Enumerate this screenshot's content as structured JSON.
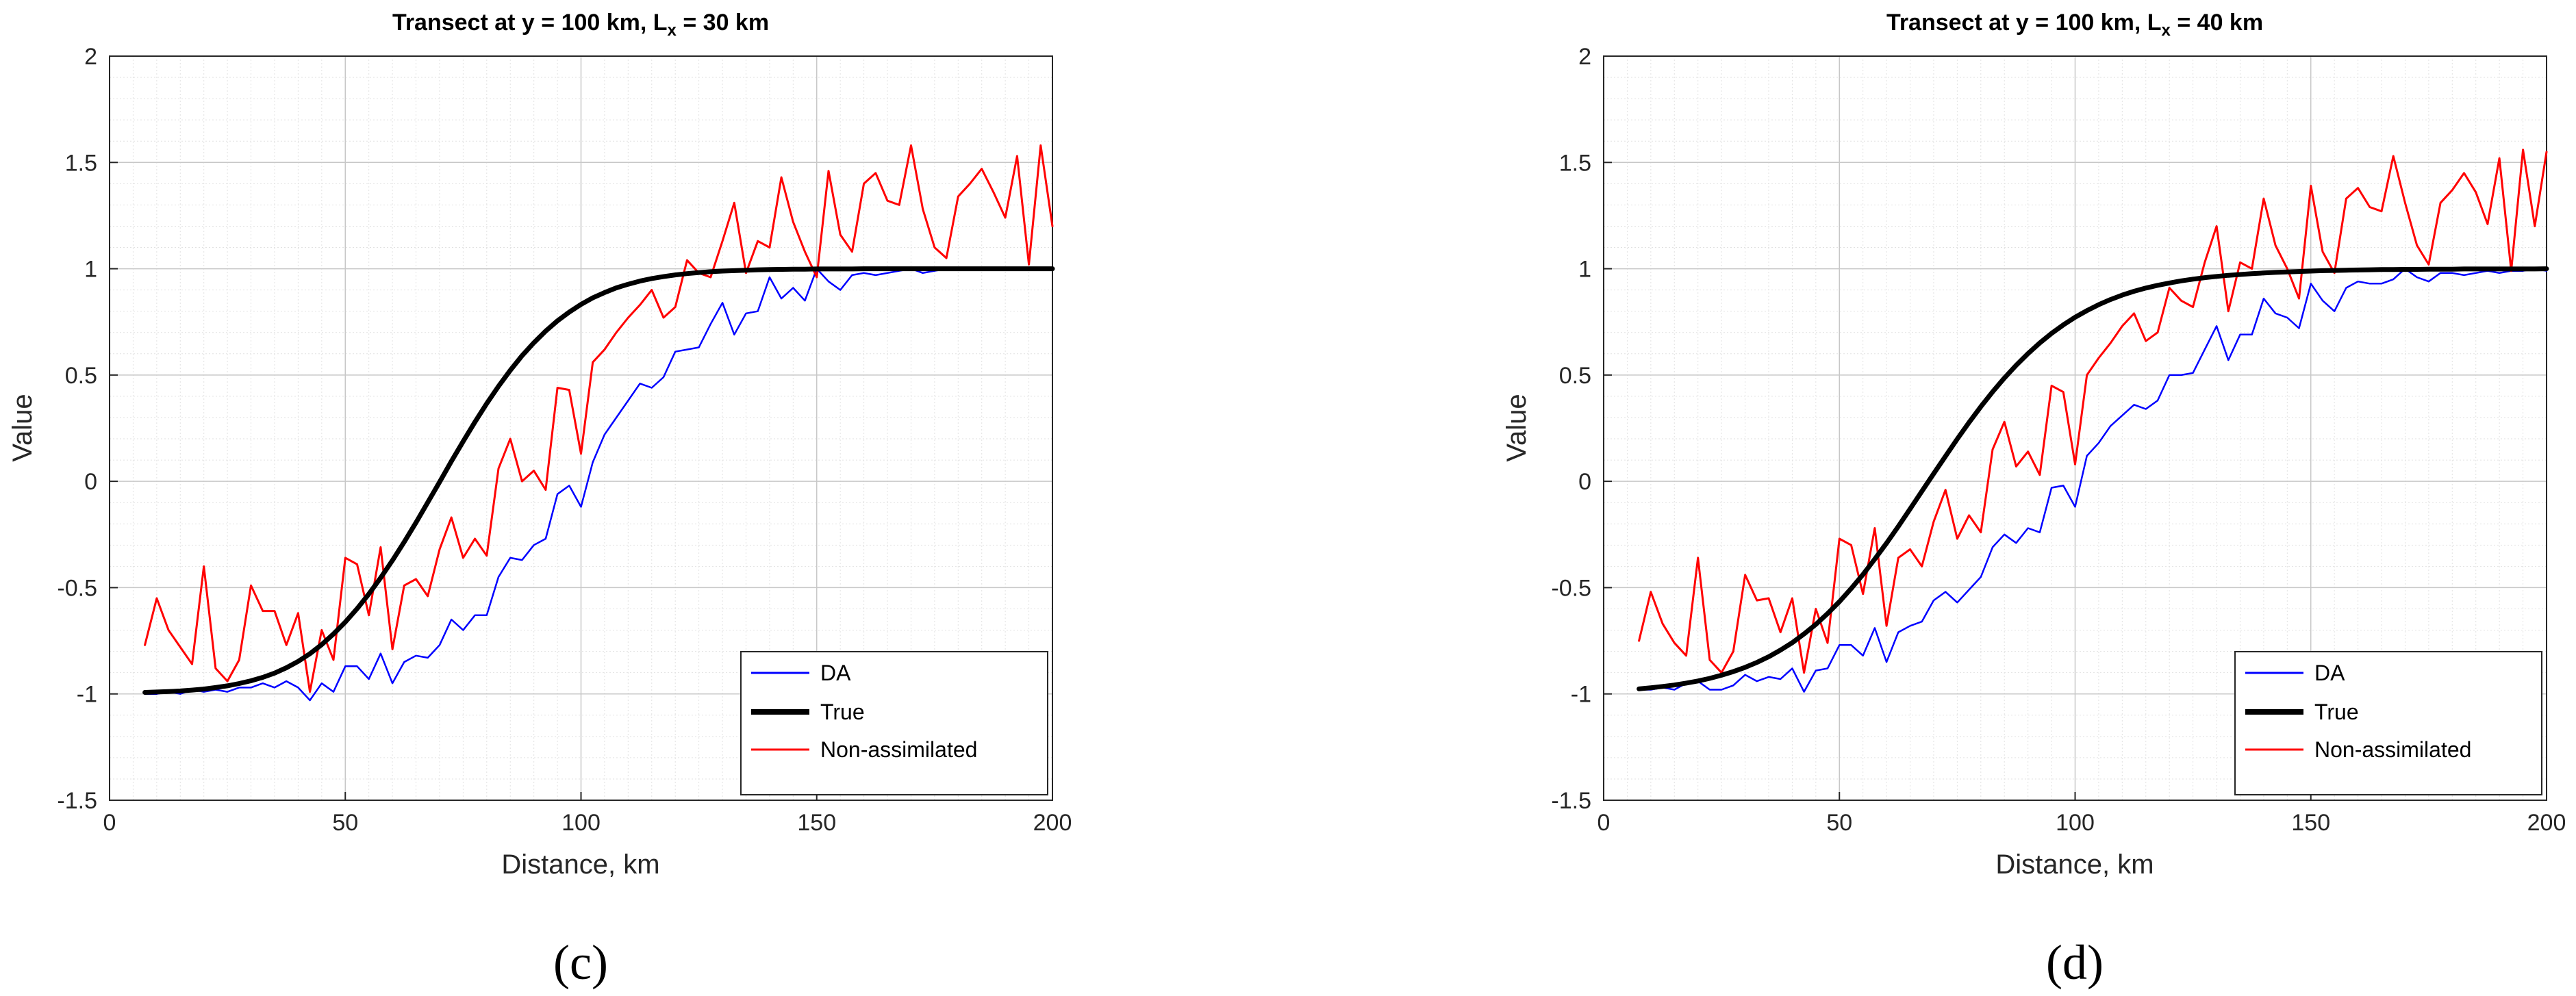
{
  "colors": {
    "da": "#0000ff",
    "true": "#000000",
    "nonassim": "#ff0000",
    "grid_major": "#c8c8c8",
    "grid_minor": "#e2e2e2"
  },
  "chart_data": [
    {
      "type": "line",
      "panel_label": "(c)",
      "title": {
        "prefix": "Transect at y = 100 km, L",
        "sub": "x",
        "suffix": " = 30 km"
      },
      "xlabel": "Distance, km",
      "ylabel": "Value",
      "xlim": [
        0,
        200
      ],
      "ylim": [
        -1.5,
        2
      ],
      "xticks": [
        "0",
        "50",
        "100",
        "150",
        "200"
      ],
      "yticks": [
        "-1.5",
        "-1",
        "-0.5",
        "0",
        "0.5",
        "1",
        "1.5",
        "2"
      ],
      "grid": "on (major + minor)",
      "legend_position": "bottom-right",
      "legend": [
        "DA",
        "True",
        "Non-assimilated"
      ],
      "x": [
        7.5,
        10,
        12.5,
        15,
        17.5,
        20,
        22.5,
        25,
        27.5,
        30,
        32.5,
        35,
        37.5,
        40,
        42.5,
        45,
        47.5,
        50,
        52.5,
        55,
        57.5,
        60,
        62.5,
        65,
        67.5,
        70,
        72.5,
        75,
        77.5,
        80,
        82.5,
        85,
        87.5,
        90,
        92.5,
        95,
        97.5,
        100,
        102.5,
        105,
        107.5,
        110,
        112.5,
        115,
        117.5,
        120,
        122.5,
        125,
        127.5,
        130,
        132.5,
        135,
        137.5,
        140,
        142.5,
        145,
        147.5,
        150,
        152.5,
        155,
        157.5,
        160,
        162.5,
        165,
        167.5,
        170,
        172.5,
        175,
        177.5,
        180,
        182.5,
        185,
        187.5,
        190,
        192.5,
        195,
        197.5,
        200
      ],
      "series": [
        {
          "name": "DA",
          "values": [
            -1,
            -1,
            -0.99,
            -1,
            -0.98,
            -0.99,
            -0.98,
            -0.99,
            -0.97,
            -0.97,
            -0.95,
            -0.97,
            -0.94,
            -0.97,
            -1.03,
            -0.95,
            -0.99,
            -0.87,
            -0.87,
            -0.93,
            -0.81,
            -0.95,
            -0.85,
            -0.82,
            -0.83,
            -0.77,
            -0.65,
            -0.7,
            -0.63,
            -0.63,
            -0.45,
            -0.36,
            -0.37,
            -0.3,
            -0.27,
            -0.06,
            -0.02,
            -0.12,
            0.09,
            0.22,
            0.3,
            0.38,
            0.46,
            0.44,
            0.49,
            0.61,
            0.62,
            0.63,
            0.74,
            0.84,
            0.69,
            0.79,
            0.8,
            0.96,
            0.86,
            0.91,
            0.85,
            1,
            0.94,
            0.9,
            0.97,
            0.98,
            0.97,
            0.98,
            0.99,
            1,
            0.98,
            0.99,
            1,
            1,
            1,
            1,
            1,
            1,
            1,
            1,
            1,
            1
          ]
        },
        {
          "name": "True",
          "values": [
            -0.993,
            -0.991,
            -0.989,
            -0.986,
            -0.982,
            -0.977,
            -0.97,
            -0.962,
            -0.951,
            -0.938,
            -0.922,
            -0.902,
            -0.877,
            -0.847,
            -0.811,
            -0.768,
            -0.718,
            -0.662,
            -0.599,
            -0.53,
            -0.454,
            -0.372,
            -0.285,
            -0.194,
            -0.099,
            -0.003,
            0.094,
            0.188,
            0.279,
            0.366,
            0.447,
            0.522,
            0.591,
            0.652,
            0.707,
            0.755,
            0.796,
            0.832,
            0.863,
            0.888,
            0.91,
            0.927,
            0.942,
            0.954,
            0.963,
            0.971,
            0.977,
            0.982,
            0.986,
            0.989,
            0.991,
            0.993,
            0.995,
            0.996,
            0.997,
            0.998,
            0.998,
            0.999,
            0.999,
            0.999,
            0.999,
            1,
            1,
            1,
            1,
            1,
            1,
            1,
            1,
            1,
            1,
            1,
            1,
            1,
            1,
            1,
            1,
            1
          ]
        },
        {
          "name": "Non-assimilated",
          "values": [
            -0.77,
            -0.55,
            -0.7,
            -0.78,
            -0.86,
            -0.4,
            -0.88,
            -0.94,
            -0.84,
            -0.49,
            -0.61,
            -0.61,
            -0.77,
            -0.62,
            -0.99,
            -0.7,
            -0.84,
            -0.36,
            -0.39,
            -0.63,
            -0.31,
            -0.79,
            -0.49,
            -0.46,
            -0.54,
            -0.32,
            -0.17,
            -0.36,
            -0.27,
            -0.35,
            0.06,
            0.2,
            0,
            0.05,
            -0.04,
            0.44,
            0.43,
            0.13,
            0.56,
            0.62,
            0.7,
            0.77,
            0.83,
            0.9,
            0.77,
            0.82,
            1.04,
            0.98,
            0.96,
            1.13,
            1.31,
            0.98,
            1.13,
            1.1,
            1.43,
            1.22,
            1.08,
            0.96,
            1.46,
            1.16,
            1.08,
            1.4,
            1.45,
            1.32,
            1.3,
            1.58,
            1.28,
            1.1,
            1.05,
            1.34,
            1.4,
            1.47,
            1.36,
            1.24,
            1.53,
            1.02,
            1.58,
            1.2
          ]
        }
      ]
    },
    {
      "type": "line",
      "panel_label": "(d)",
      "title": {
        "prefix": "Transect at y = 100 km, L",
        "sub": "x",
        "suffix": " = 40 km"
      },
      "xlabel": "Distance, km",
      "ylabel": "Value",
      "xlim": [
        0,
        200
      ],
      "ylim": [
        -1.5,
        2
      ],
      "xticks": [
        "0",
        "50",
        "100",
        "150",
        "200"
      ],
      "yticks": [
        "-1.5",
        "-1",
        "-0.5",
        "0",
        "0.5",
        "1",
        "1.5",
        "2"
      ],
      "grid": "on (major + minor)",
      "legend_position": "bottom-right",
      "legend": [
        "DA",
        "True",
        "Non-assimilated"
      ],
      "x": [
        7.5,
        10,
        12.5,
        15,
        17.5,
        20,
        22.5,
        25,
        27.5,
        30,
        32.5,
        35,
        37.5,
        40,
        42.5,
        45,
        47.5,
        50,
        52.5,
        55,
        57.5,
        60,
        62.5,
        65,
        67.5,
        70,
        72.5,
        75,
        77.5,
        80,
        82.5,
        85,
        87.5,
        90,
        92.5,
        95,
        97.5,
        100,
        102.5,
        105,
        107.5,
        110,
        112.5,
        115,
        117.5,
        120,
        122.5,
        125,
        127.5,
        130,
        132.5,
        135,
        137.5,
        140,
        142.5,
        145,
        147.5,
        150,
        152.5,
        155,
        157.5,
        160,
        162.5,
        165,
        167.5,
        170,
        172.5,
        175,
        177.5,
        180,
        182.5,
        185,
        187.5,
        190,
        192.5,
        195,
        197.5,
        200
      ],
      "series": [
        {
          "name": "DA",
          "values": [
            -0.98,
            -0.98,
            -0.97,
            -0.98,
            -0.95,
            -0.94,
            -0.98,
            -0.98,
            -0.96,
            -0.91,
            -0.94,
            -0.92,
            -0.93,
            -0.88,
            -0.99,
            -0.89,
            -0.88,
            -0.77,
            -0.77,
            -0.82,
            -0.69,
            -0.85,
            -0.71,
            -0.68,
            -0.66,
            -0.56,
            -0.52,
            -0.57,
            -0.51,
            -0.45,
            -0.31,
            -0.25,
            -0.29,
            -0.22,
            -0.24,
            -0.03,
            -0.02,
            -0.12,
            0.12,
            0.18,
            0.26,
            0.31,
            0.36,
            0.34,
            0.38,
            0.5,
            0.5,
            0.51,
            0.62,
            0.73,
            0.57,
            0.69,
            0.69,
            0.86,
            0.79,
            0.77,
            0.72,
            0.93,
            0.85,
            0.8,
            0.91,
            0.94,
            0.93,
            0.93,
            0.95,
            1,
            0.96,
            0.94,
            0.98,
            0.98,
            0.97,
            0.98,
            0.99,
            0.98,
            0.99,
            0.99,
            1,
            0.99
          ]
        },
        {
          "name": "True",
          "values": [
            -0.976,
            -0.971,
            -0.965,
            -0.958,
            -0.949,
            -0.939,
            -0.927,
            -0.912,
            -0.895,
            -0.875,
            -0.852,
            -0.825,
            -0.794,
            -0.759,
            -0.718,
            -0.673,
            -0.622,
            -0.566,
            -0.504,
            -0.438,
            -0.366,
            -0.291,
            -0.212,
            -0.13,
            -0.047,
            0.036,
            0.118,
            0.199,
            0.277,
            0.351,
            0.421,
            0.486,
            0.546,
            0.601,
            0.651,
            0.696,
            0.736,
            0.772,
            0.803,
            0.831,
            0.855,
            0.876,
            0.894,
            0.909,
            0.922,
            0.933,
            0.943,
            0.951,
            0.958,
            0.964,
            0.969,
            0.973,
            0.977,
            0.98,
            0.983,
            0.985,
            0.987,
            0.989,
            0.991,
            0.992,
            0.993,
            0.994,
            0.995,
            0.996,
            0.996,
            0.997,
            0.997,
            0.998,
            0.998,
            0.998,
            0.999,
            0.999,
            0.999,
            0.999,
            0.999,
            0.999,
            0.999,
            1
          ]
        },
        {
          "name": "Non-assimilated",
          "values": [
            -0.75,
            -0.52,
            -0.67,
            -0.76,
            -0.82,
            -0.36,
            -0.84,
            -0.9,
            -0.8,
            -0.44,
            -0.56,
            -0.55,
            -0.71,
            -0.55,
            -0.9,
            -0.6,
            -0.76,
            -0.27,
            -0.3,
            -0.53,
            -0.22,
            -0.68,
            -0.36,
            -0.32,
            -0.4,
            -0.19,
            -0.04,
            -0.27,
            -0.16,
            -0.24,
            0.15,
            0.28,
            0.07,
            0.14,
            0.03,
            0.45,
            0.42,
            0.08,
            0.5,
            0.58,
            0.65,
            0.73,
            0.79,
            0.66,
            0.7,
            0.91,
            0.85,
            0.82,
            1.03,
            1.2,
            0.8,
            1.03,
            1,
            1.33,
            1.11,
            1,
            0.86,
            1.39,
            1.08,
            0.98,
            1.33,
            1.38,
            1.29,
            1.27,
            1.53,
            1.31,
            1.11,
            1.02,
            1.31,
            1.37,
            1.45,
            1.36,
            1.21,
            1.52,
            0.99,
            1.56,
            1.2,
            1.55
          ]
        }
      ]
    }
  ]
}
